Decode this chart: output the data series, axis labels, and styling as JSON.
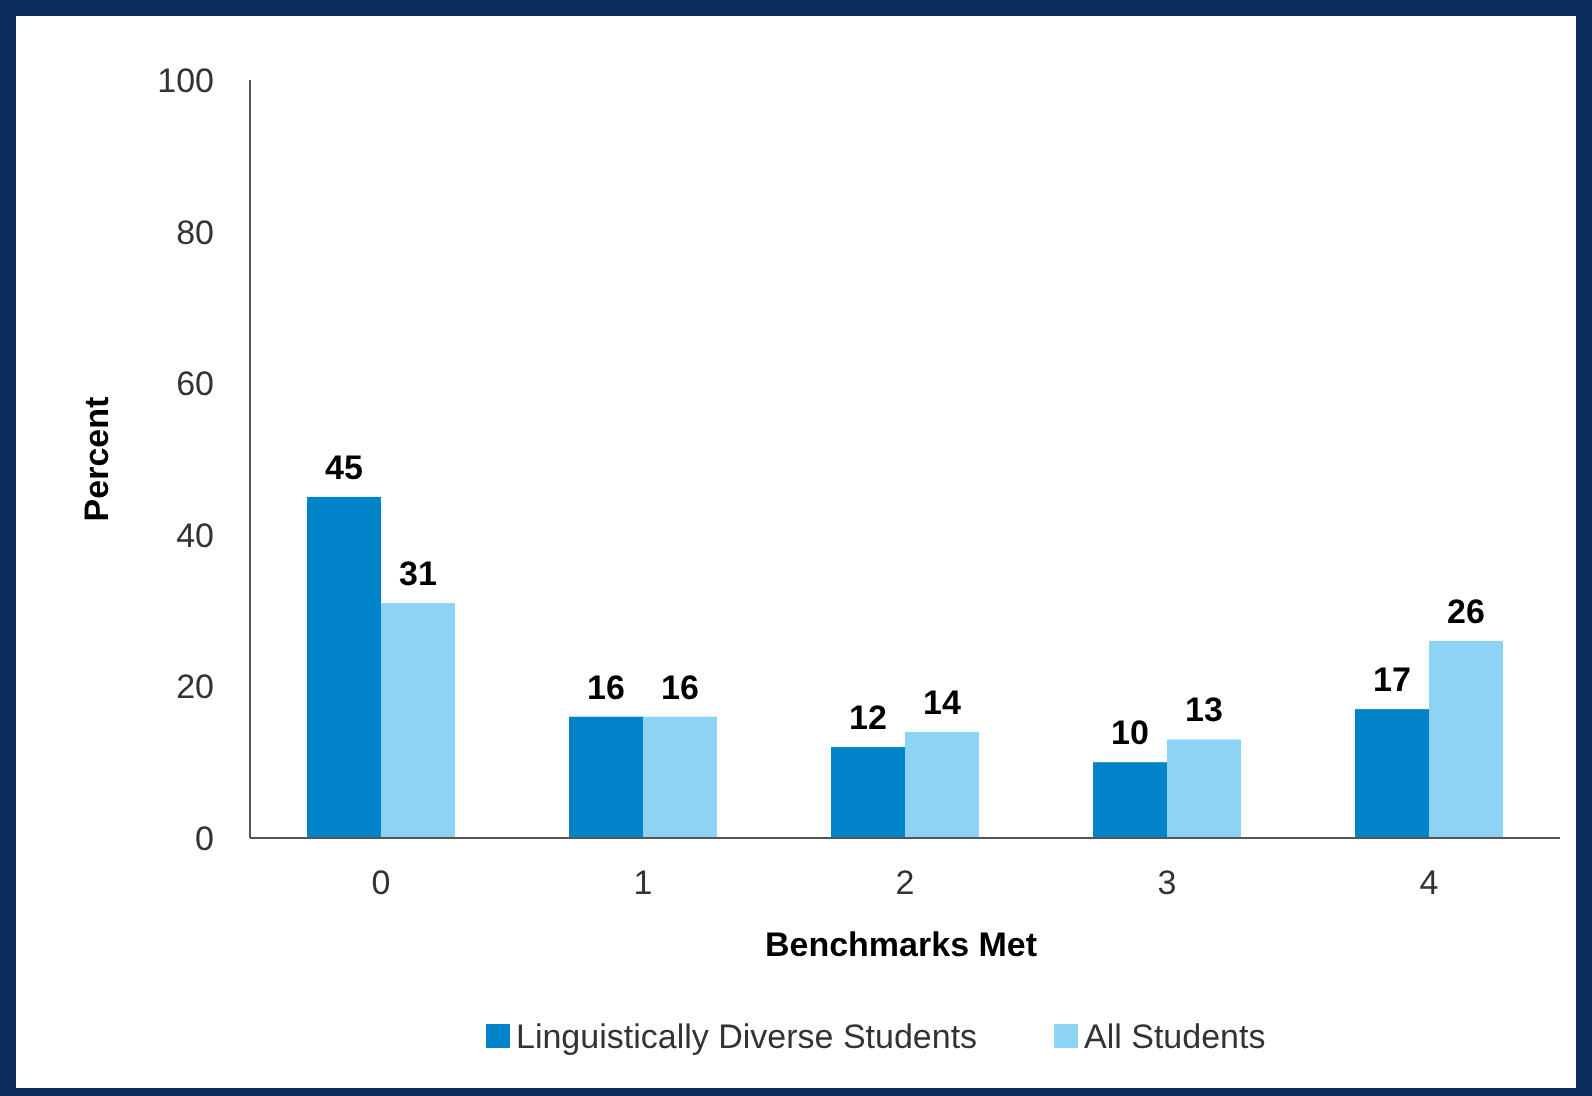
{
  "chart_data": {
    "type": "bar",
    "xlabel": "Benchmarks Met",
    "ylabel": "Percent",
    "categories": [
      "0",
      "1",
      "2",
      "3",
      "4"
    ],
    "series": [
      {
        "name": "Linguistically Diverse Students",
        "color": "#0083c8",
        "values": [
          45,
          16,
          12,
          10,
          17
        ]
      },
      {
        "name": "All Students",
        "color": "#8dd3f4",
        "values": [
          31,
          16,
          14,
          13,
          26
        ]
      }
    ],
    "ylim": [
      0,
      100
    ],
    "yticks": [
      0,
      20,
      40,
      60,
      80,
      100
    ],
    "grid": false,
    "legend": "bottom",
    "data_labels": true
  }
}
